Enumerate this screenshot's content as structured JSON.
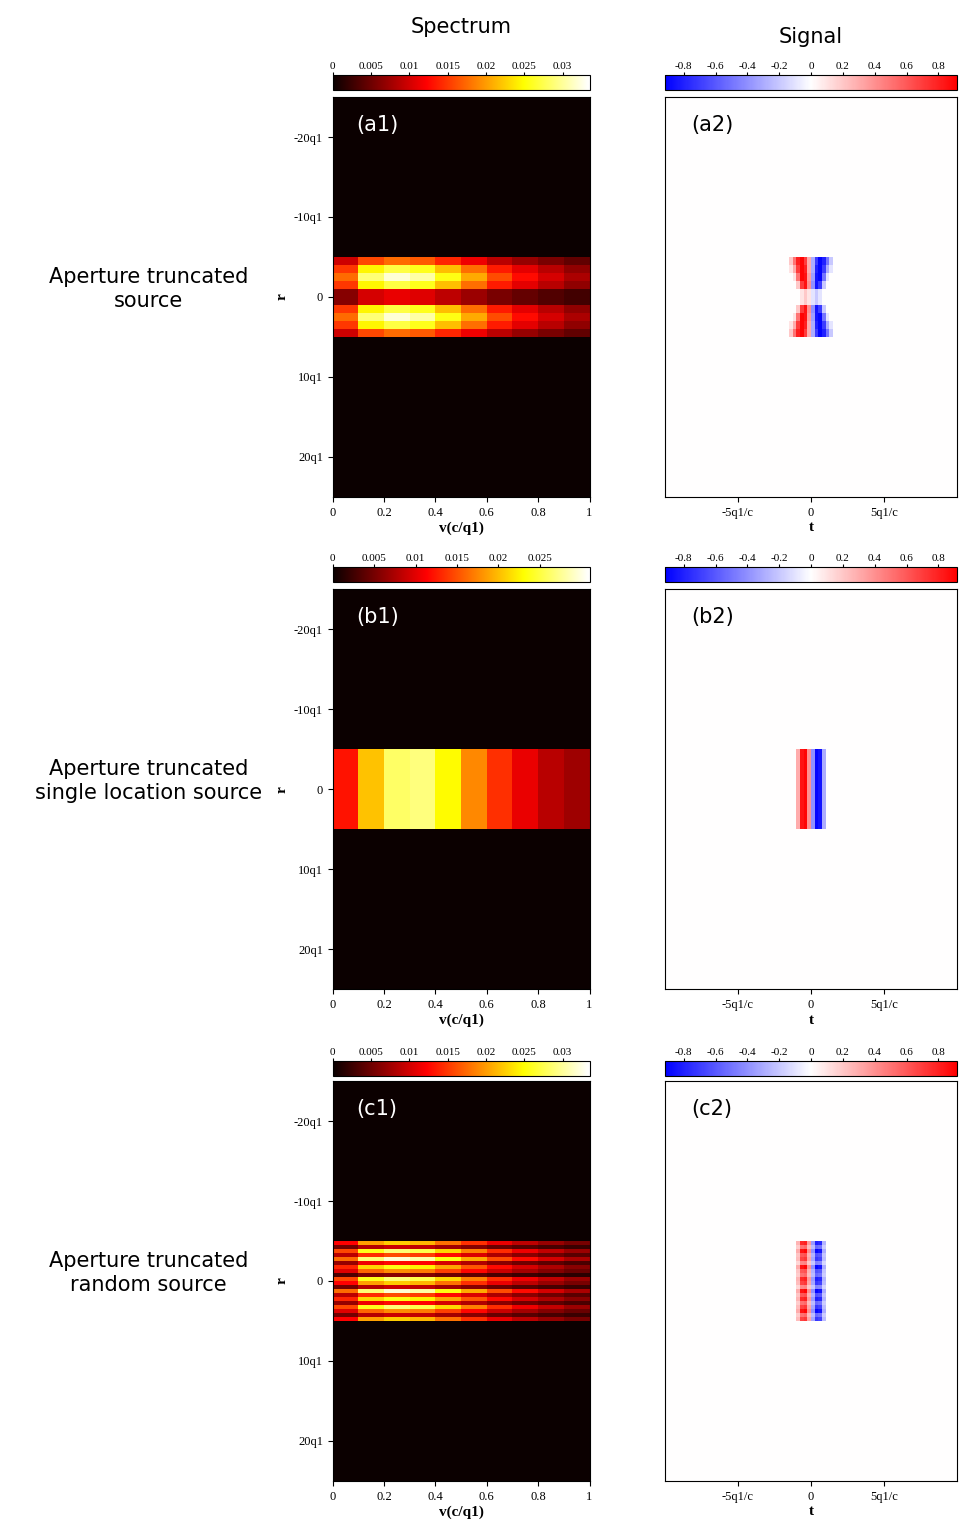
{
  "column_titles": [
    "Spectrum",
    "Signal"
  ],
  "row_labels": [
    "Aperture truncated\nsource",
    "Aperture truncated\nsingle location source",
    "Aperture truncated\nrandom source"
  ],
  "chart_data": [
    {
      "type": "heatmap",
      "label": "(a1)",
      "xlabel": "v(c/q1)",
      "ylabel": "r",
      "color": "hot",
      "xlim": [
        0,
        1
      ],
      "ylim": [
        25,
        -25
      ],
      "xticks": [
        0,
        0.2,
        0.4,
        0.6,
        0.8,
        1
      ],
      "yticks": [
        {
          "value": -20,
          "label": "-20q1"
        },
        {
          "value": -10,
          "label": "-10q1"
        },
        0,
        {
          "value": 10,
          "label": "10q1"
        },
        {
          "value": 20,
          "label": "20q1"
        }
      ],
      "x_edges": [
        0,
        0.1,
        0.2,
        0.3,
        0.4,
        0.5,
        0.6,
        0.7,
        0.8,
        0.9,
        1
      ],
      "y_edges": [
        -5,
        -4,
        -3,
        -2,
        -1,
        0,
        1,
        2,
        3,
        4,
        5
      ],
      "cells": [
        [
          0.0097,
          0.0158,
          0.0176,
          0.0167,
          0.0141,
          0.0114,
          0.0088,
          0.007,
          0.0056,
          0.0044
        ],
        [
          0.015,
          0.0245,
          0.0272,
          0.0258,
          0.0218,
          0.0177,
          0.0136,
          0.0109,
          0.0087,
          0.0068
        ],
        [
          0.0176,
          0.0288,
          0.032,
          0.0304,
          0.0256,
          0.0208,
          0.016,
          0.0128,
          0.0102,
          0.008
        ],
        [
          0.015,
          0.0245,
          0.0272,
          0.0258,
          0.0218,
          0.0177,
          0.0136,
          0.0109,
          0.0087,
          0.0068
        ],
        [
          0.0062,
          0.0101,
          0.0112,
          0.0106,
          0.009,
          0.0073,
          0.0056,
          0.0045,
          0.0036,
          0.0028
        ],
        [
          0.0062,
          0.0101,
          0.0112,
          0.0106,
          0.009,
          0.0073,
          0.0056,
          0.0045,
          0.0036,
          0.0028
        ],
        [
          0.015,
          0.0245,
          0.0272,
          0.0258,
          0.0218,
          0.0177,
          0.0136,
          0.0109,
          0.0087,
          0.0068
        ],
        [
          0.0176,
          0.0288,
          0.032,
          0.0304,
          0.0256,
          0.0208,
          0.016,
          0.0128,
          0.0102,
          0.008
        ],
        [
          0.015,
          0.0245,
          0.0272,
          0.0258,
          0.0218,
          0.0177,
          0.0136,
          0.0109,
          0.0087,
          0.0068
        ],
        [
          0.0097,
          0.0158,
          0.0176,
          0.0167,
          0.0141,
          0.0114,
          0.0088,
          0.007,
          0.0056,
          0.0044
        ]
      ],
      "colorbar": {
        "range": [
          0,
          0.0335
        ],
        "ticks": [
          0,
          0.005,
          0.01,
          0.015,
          0.02,
          0.025,
          0.03
        ]
      }
    },
    {
      "type": "heatmap",
      "label": "(a2)",
      "xlabel": "t",
      "color": "bwr",
      "tick_labels": "x",
      "xlim": [
        -10,
        10
      ],
      "ylim": [
        25,
        -25
      ],
      "xticks": [
        {
          "value": -5,
          "label": "-5q1/c"
        },
        0,
        {
          "value": 5,
          "label": "5q1/c"
        }
      ],
      "yticks": [],
      "x_edges": [
        -1.5,
        -1.25,
        -1,
        -0.75,
        -0.5,
        -0.25,
        0,
        0.25,
        0.5,
        0.75,
        1,
        1.25,
        1.5
      ],
      "y_edges": [
        -5,
        -4,
        -3,
        -2,
        -1,
        0,
        1,
        2,
        3,
        4,
        5
      ],
      "cells": [
        [
          0.2,
          0.5,
          0.8,
          0.9,
          0.7,
          0.3,
          -0.3,
          -0.7,
          -0.9,
          -0.8,
          -0.5,
          -0.2
        ],
        [
          0.1,
          0.3,
          0.7,
          0.9,
          0.8,
          0.3,
          -0.3,
          -0.8,
          -0.9,
          -0.7,
          -0.3,
          -0.1
        ],
        [
          0,
          0.1,
          0.5,
          0.9,
          0.85,
          0.35,
          -0.35,
          -0.85,
          -0.9,
          -0.5,
          -0.1,
          0
        ],
        [
          0,
          0,
          0.2,
          0.7,
          0.85,
          0.4,
          -0.4,
          -0.85,
          -0.7,
          -0.2,
          0,
          0
        ],
        [
          0,
          0,
          0,
          0.1,
          0.2,
          0.1,
          -0.1,
          -0.2,
          -0.1,
          0,
          0,
          0
        ],
        [
          0,
          0,
          0,
          0.1,
          0.2,
          0.1,
          -0.1,
          -0.2,
          -0.1,
          0,
          0,
          0
        ],
        [
          0,
          0,
          0.2,
          0.7,
          0.85,
          0.4,
          -0.4,
          -0.85,
          -0.7,
          -0.2,
          0,
          0
        ],
        [
          0,
          0.1,
          0.5,
          0.9,
          0.85,
          0.35,
          -0.35,
          -0.85,
          -0.9,
          -0.5,
          -0.1,
          0
        ],
        [
          0.1,
          0.3,
          0.7,
          0.9,
          0.8,
          0.3,
          -0.3,
          -0.8,
          -0.9,
          -0.7,
          -0.3,
          -0.1
        ],
        [
          0.2,
          0.5,
          0.8,
          0.9,
          0.7,
          0.3,
          -0.3,
          -0.7,
          -0.9,
          -0.8,
          -0.5,
          -0.2
        ]
      ],
      "colorbar": {
        "range": [
          -0.92,
          0.92
        ],
        "ticks": [
          -0.8,
          -0.6,
          -0.4,
          -0.2,
          0,
          0.2,
          0.4,
          0.6,
          0.8
        ]
      }
    },
    {
      "type": "heatmap",
      "label": "(b1)",
      "xlabel": "v(c/q1)",
      "ylabel": "r",
      "color": "hot",
      "xlim": [
        0,
        1
      ],
      "ylim": [
        25,
        -25
      ],
      "xticks": [
        0,
        0.2,
        0.4,
        0.6,
        0.8,
        1
      ],
      "yticks": [
        {
          "value": -20,
          "label": "-20q1"
        },
        {
          "value": -10,
          "label": "-10q1"
        },
        0,
        {
          "value": 10,
          "label": "10q1"
        },
        {
          "value": 20,
          "label": "20q1"
        }
      ],
      "x_edges": [
        0,
        0.1,
        0.2,
        0.3,
        0.4,
        0.5,
        0.6,
        0.7,
        0.8,
        0.9,
        1
      ],
      "y_edges": [
        -5,
        5
      ],
      "cells": [
        [
          0.0122,
          0.0203,
          0.0262,
          0.027,
          0.023,
          0.0176,
          0.0135,
          0.0103,
          0.0081,
          0.0068
        ]
      ],
      "colorbar": {
        "range": [
          0,
          0.031
        ],
        "ticks": [
          0,
          0.005,
          0.01,
          0.015,
          0.02,
          0.025
        ]
      }
    },
    {
      "type": "heatmap",
      "label": "(b2)",
      "xlabel": "t",
      "color": "bwr",
      "tick_labels": "x",
      "xlim": [
        -10,
        10
      ],
      "ylim": [
        25,
        -25
      ],
      "xticks": [
        {
          "value": -5,
          "label": "-5q1/c"
        },
        0,
        {
          "value": 5,
          "label": "5q1/c"
        }
      ],
      "yticks": [],
      "x_edges": [
        -1.5,
        -1.25,
        -1,
        -0.75,
        -0.5,
        -0.25,
        0,
        0.25,
        0.5,
        0.75,
        1,
        1.25,
        1.5
      ],
      "y_edges": [
        -5,
        5
      ],
      "cells": [
        [
          0,
          0,
          0.3,
          0.85,
          0.9,
          0.4,
          -0.4,
          -0.9,
          -0.85,
          -0.3,
          0,
          0
        ]
      ],
      "colorbar": {
        "range": [
          -0.92,
          0.92
        ],
        "ticks": [
          -0.8,
          -0.6,
          -0.4,
          -0.2,
          0,
          0.2,
          0.4,
          0.6,
          0.8
        ]
      }
    },
    {
      "type": "heatmap",
      "label": "(c1)",
      "xlabel": "v(c/q1)",
      "ylabel": "r",
      "color": "hot",
      "xlim": [
        0,
        1
      ],
      "ylim": [
        25,
        -25
      ],
      "xticks": [
        0,
        0.2,
        0.4,
        0.6,
        0.8,
        1
      ],
      "yticks": [
        {
          "value": -20,
          "label": "-20q1"
        },
        {
          "value": -10,
          "label": "-10q1"
        },
        0,
        {
          "value": 10,
          "label": "10q1"
        },
        {
          "value": 20,
          "label": "20q1"
        }
      ],
      "x_edges": [
        0,
        0.1,
        0.2,
        0.3,
        0.4,
        0.5,
        0.6,
        0.7,
        0.8,
        0.9,
        1
      ],
      "y_edges": [
        -5,
        -4.5,
        -4,
        -3.5,
        -3,
        -2.5,
        -2,
        -1.5,
        -1,
        -0.5,
        0,
        0.5,
        1,
        1.5,
        2,
        2.5,
        3,
        3.5,
        4,
        4.5,
        5
      ],
      "cells": [
        [
          0.0123,
          0.0202,
          0.0224,
          0.0213,
          0.0179,
          0.0146,
          0.0112,
          0.009,
          0.0071,
          0.0056
        ],
        [
          0.0053,
          0.0086,
          0.0096,
          0.0091,
          0.0077,
          0.0062,
          0.0048,
          0.0038,
          0.0031,
          0.0024
        ],
        [
          0.0158,
          0.0259,
          0.0288,
          0.0274,
          0.023,
          0.0187,
          0.0144,
          0.0115,
          0.0092,
          0.0072
        ],
        [
          0.0088,
          0.0144,
          0.016,
          0.0152,
          0.0128,
          0.0104,
          0.008,
          0.0064,
          0.0051,
          0.004
        ],
        [
          0.0176,
          0.0288,
          0.032,
          0.0304,
          0.0256,
          0.0208,
          0.016,
          0.0128,
          0.0102,
          0.008
        ],
        [
          0.007,
          0.0115,
          0.0128,
          0.0122,
          0.0102,
          0.0083,
          0.0064,
          0.0051,
          0.0041,
          0.0032
        ],
        [
          0.0141,
          0.023,
          0.0256,
          0.0243,
          0.0205,
          0.0166,
          0.0128,
          0.0102,
          0.0082,
          0.0064
        ],
        [
          0.0106,
          0.0173,
          0.0192,
          0.0182,
          0.0154,
          0.0125,
          0.0096,
          0.0077,
          0.0061,
          0.0048
        ],
        [
          0.0035,
          0.0058,
          0.0064,
          0.0061,
          0.0051,
          0.0042,
          0.0032,
          0.0026,
          0.002,
          0.0016
        ],
        [
          0.0158,
          0.0259,
          0.0288,
          0.0274,
          0.023,
          0.0187,
          0.0144,
          0.0115,
          0.0092,
          0.0072
        ],
        [
          0.0123,
          0.0202,
          0.0224,
          0.0213,
          0.0179,
          0.0146,
          0.0112,
          0.009,
          0.0071,
          0.0056
        ],
        [
          0.0053,
          0.0086,
          0.0096,
          0.0091,
          0.0077,
          0.0062,
          0.0048,
          0.0038,
          0.0031,
          0.0024
        ],
        [
          0.0176,
          0.0288,
          0.032,
          0.0304,
          0.0256,
          0.0208,
          0.016,
          0.0128,
          0.0102,
          0.008
        ],
        [
          0.0088,
          0.0144,
          0.016,
          0.0152,
          0.0128,
          0.0104,
          0.008,
          0.0064,
          0.0051,
          0.004
        ],
        [
          0.0141,
          0.023,
          0.0256,
          0.0243,
          0.0205,
          0.0166,
          0.0128,
          0.0102,
          0.0082,
          0.0064
        ],
        [
          0.007,
          0.0115,
          0.0128,
          0.0122,
          0.0102,
          0.0083,
          0.0064,
          0.0051,
          0.0041,
          0.0032
        ],
        [
          0.0158,
          0.0259,
          0.0288,
          0.0274,
          0.023,
          0.0187,
          0.0144,
          0.0115,
          0.0092,
          0.0072
        ],
        [
          0.0106,
          0.0173,
          0.0192,
          0.0182,
          0.0154,
          0.0125,
          0.0096,
          0.0077,
          0.0061,
          0.0048
        ],
        [
          0.0053,
          0.0086,
          0.0096,
          0.0091,
          0.0077,
          0.0062,
          0.0048,
          0.0038,
          0.0031,
          0.0024
        ],
        [
          0.0123,
          0.0202,
          0.0224,
          0.0213,
          0.0179,
          0.0146,
          0.0112,
          0.009,
          0.0071,
          0.0056
        ]
      ],
      "colorbar": {
        "range": [
          0,
          0.0335
        ],
        "ticks": [
          0,
          0.005,
          0.01,
          0.015,
          0.02,
          0.025,
          0.03
        ]
      }
    },
    {
      "type": "heatmap",
      "label": "(c2)",
      "xlabel": "t",
      "color": "bwr",
      "tick_labels": "x",
      "xlim": [
        -10,
        10
      ],
      "ylim": [
        25,
        -25
      ],
      "xticks": [
        {
          "value": -5,
          "label": "-5q1/c"
        },
        0,
        {
          "value": 5,
          "label": "5q1/c"
        }
      ],
      "yticks": [],
      "x_edges": [
        -1.5,
        -1.25,
        -1,
        -0.75,
        -0.5,
        -0.25,
        0,
        0.25,
        0.5,
        0.75,
        1,
        1.25,
        1.5
      ],
      "y_edges": [
        -5,
        -4.5,
        -4,
        -3.5,
        -3,
        -2.5,
        -2,
        -1.5,
        -1,
        -0.5,
        0,
        0.5,
        1,
        1.5,
        2,
        2.5,
        3,
        3.5,
        4,
        4.5,
        5
      ],
      "cells": [
        [
          0,
          0,
          0.27,
          0.77,
          0.81,
          0.36,
          -0.36,
          -0.81,
          -0.77,
          -0.27,
          0,
          0
        ],
        [
          0,
          0,
          0.18,
          0.51,
          0.54,
          0.24,
          -0.24,
          -0.54,
          -0.51,
          -0.18,
          0,
          0
        ],
        [
          0,
          0,
          0.3,
          0.85,
          0.9,
          0.4,
          -0.4,
          -0.9,
          -0.85,
          -0.3,
          0,
          0
        ],
        [
          0,
          0,
          0.21,
          0.6,
          0.63,
          0.28,
          -0.28,
          -0.63,
          -0.6,
          -0.21,
          0,
          0
        ],
        [
          0,
          0,
          0.24,
          0.68,
          0.72,
          0.32,
          -0.32,
          -0.72,
          -0.68,
          -0.24,
          0,
          0
        ],
        [
          0,
          0,
          0.15,
          0.43,
          0.45,
          0.2,
          -0.2,
          -0.45,
          -0.43,
          -0.15,
          0,
          0
        ],
        [
          0,
          0,
          0.3,
          0.85,
          0.9,
          0.4,
          -0.4,
          -0.9,
          -0.85,
          -0.3,
          0,
          0
        ],
        [
          0,
          0,
          0.21,
          0.6,
          0.63,
          0.28,
          -0.28,
          -0.63,
          -0.6,
          -0.21,
          0,
          0
        ],
        [
          0,
          0,
          0.18,
          0.51,
          0.54,
          0.24,
          -0.24,
          -0.54,
          -0.51,
          -0.18,
          0,
          0
        ],
        [
          0,
          0,
          0.27,
          0.77,
          0.81,
          0.36,
          -0.36,
          -0.81,
          -0.77,
          -0.27,
          0,
          0
        ],
        [
          0,
          0,
          0.24,
          0.68,
          0.72,
          0.32,
          -0.32,
          -0.72,
          -0.68,
          -0.24,
          0,
          0
        ],
        [
          0,
          0,
          0.15,
          0.43,
          0.45,
          0.2,
          -0.2,
          -0.45,
          -0.43,
          -0.15,
          0,
          0
        ],
        [
          0,
          0,
          0.3,
          0.85,
          0.9,
          0.4,
          -0.4,
          -0.9,
          -0.85,
          -0.3,
          0,
          0
        ],
        [
          0,
          0,
          0.21,
          0.6,
          0.63,
          0.28,
          -0.28,
          -0.63,
          -0.6,
          -0.21,
          0,
          0
        ],
        [
          0,
          0,
          0.27,
          0.77,
          0.81,
          0.36,
          -0.36,
          -0.81,
          -0.77,
          -0.27,
          0,
          0
        ],
        [
          0,
          0,
          0.18,
          0.51,
          0.54,
          0.24,
          -0.24,
          -0.54,
          -0.51,
          -0.18,
          0,
          0
        ],
        [
          0,
          0,
          0.24,
          0.68,
          0.72,
          0.32,
          -0.32,
          -0.72,
          -0.68,
          -0.24,
          0,
          0
        ],
        [
          0,
          0,
          0.3,
          0.85,
          0.9,
          0.4,
          -0.4,
          -0.9,
          -0.85,
          -0.3,
          0,
          0
        ],
        [
          0,
          0,
          0.18,
          0.51,
          0.54,
          0.24,
          -0.24,
          -0.54,
          -0.51,
          -0.18,
          0,
          0
        ],
        [
          0,
          0,
          0.24,
          0.68,
          0.72,
          0.32,
          -0.32,
          -0.72,
          -0.68,
          -0.24,
          0,
          0
        ]
      ],
      "colorbar": {
        "range": [
          -0.92,
          0.92
        ],
        "ticks": [
          -0.8,
          -0.6,
          -0.4,
          -0.2,
          0,
          0.2,
          0.4,
          0.6,
          0.8
        ]
      }
    }
  ]
}
